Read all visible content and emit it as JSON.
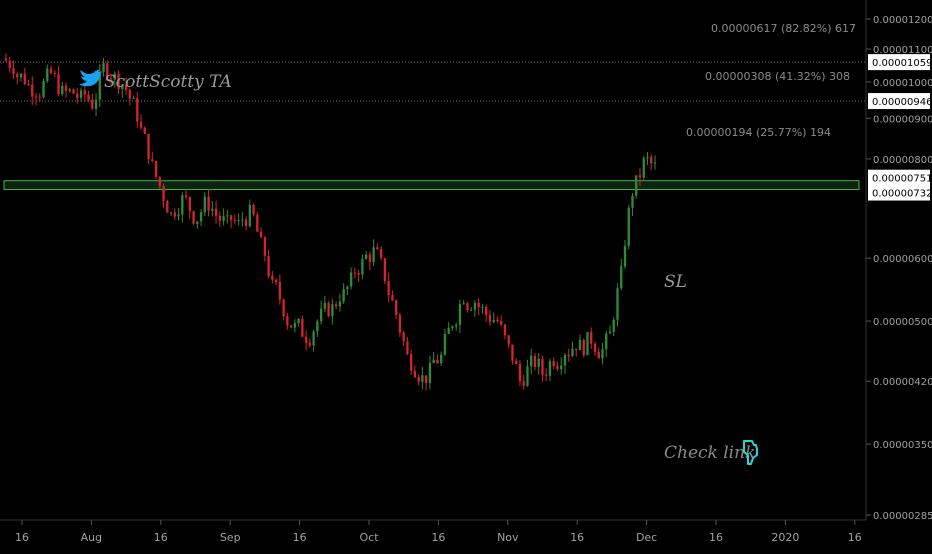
{
  "chart_data": {
    "type": "candlestick",
    "watermark": "ScottScotty TA",
    "colors": {
      "background": "#000000",
      "up": "#2e8b3a",
      "down": "#d6242e",
      "zone_border": "#4caf50",
      "zone_fill": "#0e2a12",
      "dotted_line": "#6e6e6e",
      "text": "#8a8a8a",
      "twitter_blue": "#1da1f2",
      "accent_cyan": "#27d3d3"
    },
    "icons": {
      "watermark": "twitter-bird-icon",
      "check_link": "pointing-hand-icon"
    },
    "ylim": [
      2.85e-06,
      1.2e-06
    ],
    "y_ticks": [
      {
        "value": 1.2e-05,
        "label": "0.00001200"
      },
      {
        "value": 1.1e-05,
        "label": "0.00001100"
      },
      {
        "value": 1e-05,
        "label": "0.00001000"
      },
      {
        "value": 9e-06,
        "label": "0.00000900"
      },
      {
        "value": 8e-06,
        "label": "0.00000800"
      },
      {
        "value": 6e-06,
        "label": "0.00000600"
      },
      {
        "value": 5e-06,
        "label": "0.00000500"
      },
      {
        "value": 4.2e-06,
        "label": "0.00000420"
      },
      {
        "value": 3.5e-06,
        "label": "0.00000350"
      },
      {
        "value": 2.85e-06,
        "label": "0.00000285"
      }
    ],
    "x_ticks": [
      "16",
      "Aug",
      "16",
      "Sep",
      "16",
      "Oct",
      "16",
      "Nov",
      "16",
      "Dec",
      "16",
      "2020",
      "16"
    ],
    "price_levels": [
      {
        "value": 1.059e-05,
        "label": "0.00001059"
      },
      {
        "value": 9.46e-06,
        "label": "0.00000946"
      },
      {
        "value": 7.51e-06,
        "label": "0.00000751"
      },
      {
        "value": 7.32e-06,
        "label": "0.00000732"
      }
    ],
    "targets": [
      {
        "text": "0.00000617 (82.82%) 617"
      },
      {
        "text": "0.00000308 (41.32%) 308"
      },
      {
        "text": "0.00000194 (25.77%) 194"
      }
    ],
    "zone": {
      "top": 7.51e-06,
      "bottom": 7.32e-06
    },
    "annotations": {
      "sl": "SL",
      "check_link": "Check link"
    },
    "close_series": [
      1.05e-05,
      1.01e-05,
      9.8e-06,
      1.01e-05,
      9.9e-06,
      9.7e-06,
      9.5e-06,
      9.4e-06,
      1.04e-05,
      1.01e-05,
      9.8e-06,
      9.1e-06,
      8.2e-06,
      7.4e-06,
      6.8e-06,
      7.1e-06,
      6.8e-06,
      7e-06,
      6.8e-06,
      6.6e-06,
      6.6e-06,
      6.8e-06,
      6.2e-06,
      5.5e-06,
      5.2e-06,
      4.9e-06,
      4.8e-06,
      5e-06,
      5.2e-06,
      5.4e-06,
      5.6e-06,
      5.9e-06,
      6.1e-06,
      5.7e-06,
      5.1e-06,
      4.5e-06,
      4.3e-06,
      4.3e-06,
      4.5e-06,
      5e-06,
      5.4e-06,
      5.3e-06,
      5.1e-06,
      5e-06,
      4.6e-06,
      4.2e-06,
      4.4e-06,
      4.3e-06,
      4.5e-06,
      4.6e-06,
      4.7e-06,
      4.7e-06,
      4.6e-06,
      4.8e-06,
      5.7e-06,
      7.3e-06,
      7.9e-06,
      7.8e-06
    ]
  }
}
